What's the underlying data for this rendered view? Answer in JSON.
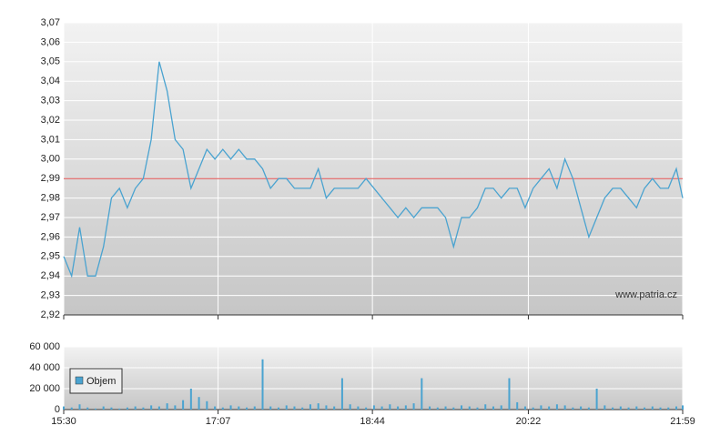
{
  "chart_data": [
    {
      "type": "line",
      "x": [
        "15:30",
        "15:35",
        "15:40",
        "15:45",
        "15:50",
        "15:55",
        "16:00",
        "16:05",
        "16:10",
        "16:15",
        "16:20",
        "16:25",
        "16:30",
        "16:35",
        "16:40",
        "16:45",
        "16:50",
        "16:55",
        "17:00",
        "17:05",
        "17:10",
        "17:15",
        "17:20",
        "17:25",
        "17:30",
        "17:35",
        "17:40",
        "17:45",
        "17:50",
        "17:55",
        "18:00",
        "18:05",
        "18:10",
        "18:15",
        "18:20",
        "18:25",
        "18:30",
        "18:35",
        "18:40",
        "18:45",
        "18:50",
        "18:55",
        "19:00",
        "19:05",
        "19:10",
        "19:15",
        "19:20",
        "19:25",
        "19:30",
        "19:35",
        "19:40",
        "19:45",
        "19:50",
        "19:55",
        "20:00",
        "20:05",
        "20:10",
        "20:15",
        "20:20",
        "20:25",
        "20:30",
        "20:35",
        "20:40",
        "20:45",
        "20:50",
        "20:55",
        "21:00",
        "21:05",
        "21:10",
        "21:15",
        "21:20",
        "21:25",
        "21:30",
        "21:35",
        "21:40",
        "21:45",
        "21:50",
        "21:55",
        "21:59"
      ],
      "series": [
        {
          "color": "#4aa3d0",
          "values": [
            2.95,
            2.94,
            2.965,
            2.94,
            2.94,
            2.955,
            2.98,
            2.985,
            2.975,
            2.985,
            2.99,
            3.01,
            3.05,
            3.035,
            3.01,
            3.005,
            2.985,
            2.995,
            3.005,
            3.0,
            3.005,
            3.0,
            3.005,
            3.0,
            3.0,
            2.995,
            2.985,
            2.99,
            2.99,
            2.985,
            2.985,
            2.985,
            2.995,
            2.98,
            2.985,
            2.985,
            2.985,
            2.985,
            2.99,
            2.985,
            2.98,
            2.975,
            2.97,
            2.975,
            2.97,
            2.975,
            2.975,
            2.975,
            2.97,
            2.955,
            2.97,
            2.97,
            2.975,
            2.985,
            2.985,
            2.98,
            2.985,
            2.985,
            2.975,
            2.985,
            2.99,
            2.995,
            2.985,
            3.0,
            2.99,
            2.975,
            2.96,
            2.97,
            2.98,
            2.985,
            2.985,
            2.98,
            2.975,
            2.985,
            2.99,
            2.985,
            2.985,
            2.995,
            2.98
          ]
        }
      ],
      "reference": {
        "value": 2.99,
        "color": "#e05050"
      },
      "xlim": [
        "15:30",
        "21:59"
      ],
      "xticks": [
        "15:30",
        "17:07",
        "18:44",
        "20:22",
        "21:59"
      ],
      "ylim": [
        2.92,
        3.07
      ],
      "yticks": [
        {
          "value": 2.92,
          "label": "2,92"
        },
        {
          "value": 2.93,
          "label": "2,93"
        },
        {
          "value": 2.94,
          "label": "2,94"
        },
        {
          "value": 2.95,
          "label": "2,95"
        },
        {
          "value": 2.96,
          "label": "2,96"
        },
        {
          "value": 2.97,
          "label": "2,97"
        },
        {
          "value": 2.98,
          "label": "2,98"
        },
        {
          "value": 2.99,
          "label": "2,99"
        },
        {
          "value": 3.0,
          "label": "3,00"
        },
        {
          "value": 3.01,
          "label": "3,01"
        },
        {
          "value": 3.02,
          "label": "3,02"
        },
        {
          "value": 3.03,
          "label": "3,03"
        },
        {
          "value": 3.04,
          "label": "3,04"
        },
        {
          "value": 3.05,
          "label": "3,05"
        },
        {
          "value": 3.06,
          "label": "3,06"
        },
        {
          "value": 3.07,
          "label": "3,07"
        }
      ],
      "grid": true,
      "annotation": "www.patria.cz"
    },
    {
      "type": "bar",
      "x": [
        "15:30",
        "15:35",
        "15:40",
        "15:45",
        "15:50",
        "15:55",
        "16:00",
        "16:05",
        "16:10",
        "16:15",
        "16:20",
        "16:25",
        "16:30",
        "16:35",
        "16:40",
        "16:45",
        "16:50",
        "16:55",
        "17:00",
        "17:05",
        "17:10",
        "17:15",
        "17:20",
        "17:25",
        "17:30",
        "17:35",
        "17:40",
        "17:45",
        "17:50",
        "17:55",
        "18:00",
        "18:05",
        "18:10",
        "18:15",
        "18:20",
        "18:25",
        "18:30",
        "18:35",
        "18:40",
        "18:45",
        "18:50",
        "18:55",
        "19:00",
        "19:05",
        "19:10",
        "19:15",
        "19:20",
        "19:25",
        "19:30",
        "19:35",
        "19:40",
        "19:45",
        "19:50",
        "19:55",
        "20:00",
        "20:05",
        "20:10",
        "20:15",
        "20:20",
        "20:25",
        "20:30",
        "20:35",
        "20:40",
        "20:45",
        "20:50",
        "20:55",
        "21:00",
        "21:05",
        "21:10",
        "21:15",
        "21:20",
        "21:25",
        "21:30",
        "21:35",
        "21:40",
        "21:45",
        "21:50",
        "21:55",
        "21:59"
      ],
      "series": [
        {
          "name": "Objem",
          "color": "#4aa3d0",
          "values": [
            3000,
            2000,
            5000,
            2000,
            1000,
            3000,
            2000,
            1000,
            2000,
            3000,
            2000,
            4000,
            3000,
            6000,
            4000,
            9000,
            20000,
            12000,
            8000,
            3000,
            2000,
            4000,
            3000,
            2000,
            3000,
            48000,
            3000,
            2000,
            4000,
            3000,
            2000,
            5000,
            6000,
            4000,
            3000,
            30000,
            5000,
            3000,
            2000,
            4000,
            3000,
            5000,
            3000,
            4000,
            6000,
            30000,
            3000,
            2000,
            3000,
            2000,
            4000,
            3000,
            2000,
            5000,
            3000,
            4000,
            30000,
            7000,
            3000,
            2000,
            4000,
            3000,
            5000,
            4000,
            2000,
            3000,
            2000,
            20000,
            4000,
            2000,
            3000,
            2000,
            3000,
            2000,
            3000,
            2000,
            2000,
            3000,
            4000
          ]
        }
      ],
      "xlim": [
        "15:30",
        "21:59"
      ],
      "xticks": [
        "15:30",
        "17:07",
        "18:44",
        "20:22",
        "21:59"
      ],
      "ylim": [
        0,
        60000
      ],
      "yticks": [
        {
          "value": 0,
          "label": "0"
        },
        {
          "value": 20000,
          "label": "20 000"
        },
        {
          "value": 40000,
          "label": "40 000"
        },
        {
          "value": 60000,
          "label": "60 000"
        }
      ],
      "grid": true,
      "legend": "left"
    }
  ]
}
